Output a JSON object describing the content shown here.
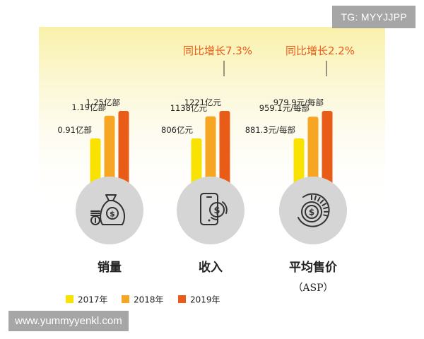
{
  "chart_data": {
    "type": "bar",
    "legend": [
      "2017年",
      "2018年",
      "2019年"
    ],
    "colors": [
      "#F9E200",
      "#F6A623",
      "#E85C17"
    ],
    "groups": [
      {
        "name": "销量",
        "sub": "",
        "growth": "",
        "icon": "money-bag-icon",
        "values": [
          0.91,
          1.19,
          1.25
        ],
        "labels": [
          "0.91亿部",
          "1.19亿部",
          "1.25亿部"
        ]
      },
      {
        "name": "收入",
        "sub": "",
        "growth": "同比增长7.3%",
        "icon": "phone-dollar-icon",
        "values": [
          806,
          1138,
          1221
        ],
        "labels": [
          "806亿元",
          "1138亿元",
          "1221亿元"
        ]
      },
      {
        "name": "平均售价",
        "sub": "（ASP）",
        "growth": "同比增长2.2%",
        "icon": "coin-gauge-icon",
        "values": [
          881.3,
          959.1,
          979.9
        ],
        "labels": [
          "881.3元/每部",
          "959.1元/每部",
          "979.9元/每部"
        ]
      }
    ]
  },
  "watermarks": {
    "top": "TG: MYYJJPP",
    "bottom": "www.yummyyenkl.com"
  }
}
